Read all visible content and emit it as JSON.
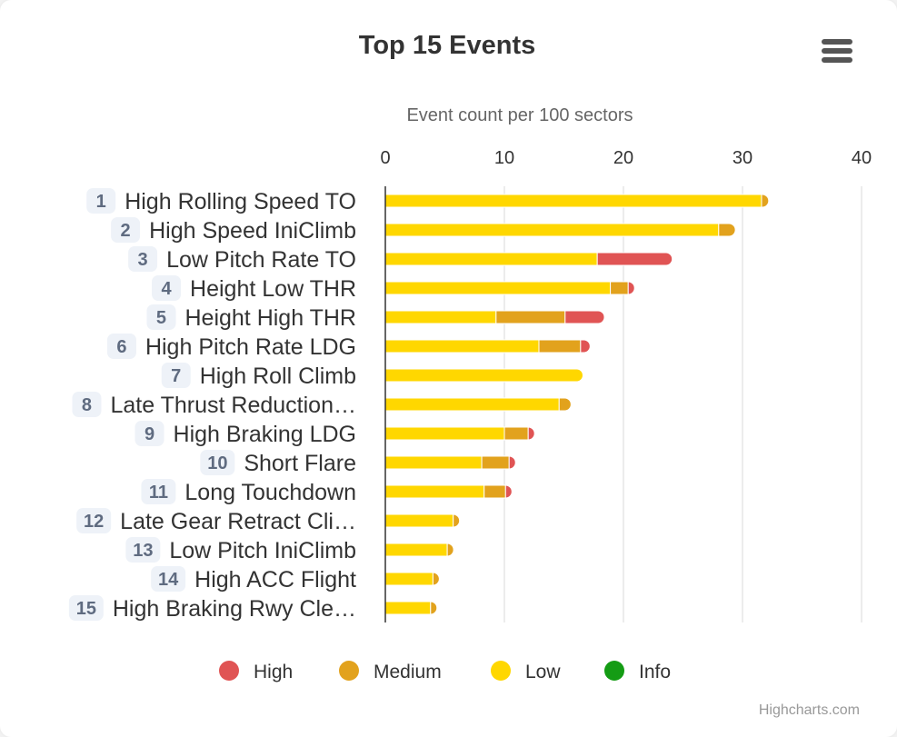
{
  "chart_data": {
    "type": "bar",
    "stacked": true,
    "orientation": "horizontal",
    "title": "Top 15 Events",
    "xlabel": "Event count per 100 sectors",
    "xlim": [
      0,
      40
    ],
    "ticks": [
      0,
      10,
      20,
      30,
      40
    ],
    "grid": true,
    "legend_position": "bottom",
    "categories": [
      {
        "rank": "1",
        "label": "High Rolling Speed TO"
      },
      {
        "rank": "2",
        "label": "High Speed IniClimb"
      },
      {
        "rank": "3",
        "label": "Low Pitch Rate TO"
      },
      {
        "rank": "4",
        "label": "Height Low THR"
      },
      {
        "rank": "5",
        "label": "Height High THR"
      },
      {
        "rank": "6",
        "label": "High Pitch Rate LDG"
      },
      {
        "rank": "7",
        "label": "High Roll Climb"
      },
      {
        "rank": "8",
        "label": "Late Thrust Reduction…"
      },
      {
        "rank": "9",
        "label": "High Braking LDG"
      },
      {
        "rank": "10",
        "label": "Short Flare"
      },
      {
        "rank": "11",
        "label": "Long Touchdown"
      },
      {
        "rank": "12",
        "label": "Late Gear Retract Cli…"
      },
      {
        "rank": "13",
        "label": "Low Pitch IniClimb"
      },
      {
        "rank": "14",
        "label": "High ACC Flight"
      },
      {
        "rank": "15",
        "label": "High Braking Rwy Cle…"
      }
    ],
    "series": [
      {
        "name": "Low",
        "color": "#ffd700",
        "values": [
          31.6,
          28.0,
          17.8,
          18.9,
          9.3,
          12.9,
          16.6,
          14.6,
          10.0,
          8.1,
          8.3,
          5.7,
          5.2,
          4.0,
          3.8
        ]
      },
      {
        "name": "Medium",
        "color": "#e2a21d",
        "values": [
          0.6,
          1.4,
          0,
          1.5,
          5.8,
          3.5,
          0,
          1.0,
          2.0,
          2.3,
          1.8,
          0.3,
          0.3,
          0.4,
          0.3
        ]
      },
      {
        "name": "High",
        "color": "#e05454",
        "values": [
          0,
          0,
          6.3,
          0.5,
          3.3,
          0.8,
          0,
          0,
          0.3,
          0.5,
          0.4,
          0,
          0,
          0,
          0
        ]
      },
      {
        "name": "Info",
        "color": "#149c14",
        "values": [
          0,
          0,
          0,
          0,
          0,
          0,
          0,
          0,
          0,
          0,
          0,
          0,
          0,
          0,
          0
        ]
      }
    ],
    "legend": [
      {
        "name": "High",
        "color": "#e05454"
      },
      {
        "name": "Medium",
        "color": "#e2a21d"
      },
      {
        "name": "Low",
        "color": "#ffd700"
      },
      {
        "name": "Info",
        "color": "#149c14"
      }
    ]
  },
  "menu_icon": "hamburger-menu-icon",
  "credits": "Highcharts.com"
}
